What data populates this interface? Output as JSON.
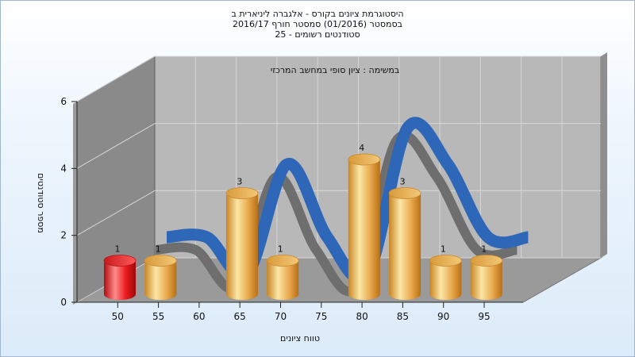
{
  "chart_data": {
    "type": "bar",
    "title_lines": [
      "היסטוגרמת ציונים בקורס - אלגברה ליניארית ב",
      "בסמסטר  (01/2016)  סמסטר חורף 2016/17",
      "סטודנטים רשומים - 25"
    ],
    "annotation": "במשימה : ציון סופי במחשב המרכזי",
    "xlabel": "טווח ציונים",
    "ylabel": "מספר סטודנטים",
    "categories": [
      "50",
      "55",
      "60",
      "65",
      "70",
      "75",
      "80",
      "85",
      "90",
      "95"
    ],
    "values": [
      1,
      1,
      0,
      3,
      1,
      0,
      4,
      3,
      1,
      1
    ],
    "bar_colors": [
      "#e8181c",
      "#eba94f",
      "#eba94f",
      "#eba94f",
      "#eba94f",
      "#eba94f",
      "#eba94f",
      "#eba94f",
      "#eba94f",
      "#eba94f"
    ],
    "yticks": [
      0,
      2,
      4,
      6
    ],
    "ylim": [
      0,
      6
    ],
    "trend_line_color": "#2f67b8",
    "grid": true,
    "legend": "none"
  }
}
